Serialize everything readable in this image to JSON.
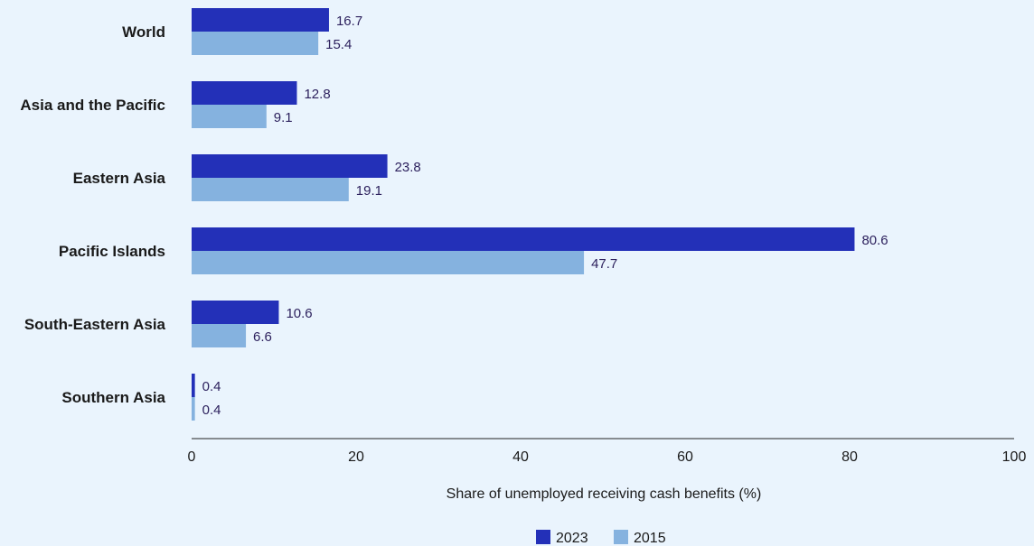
{
  "chart_data": {
    "type": "bar",
    "orientation": "horizontal",
    "categories": [
      "World",
      "Asia and the Pacific",
      "Eastern Asia",
      "Pacific Islands",
      "South-Eastern Asia",
      "Southern Asia"
    ],
    "series": [
      {
        "name": "2023",
        "color": "#2330b8",
        "values": [
          16.7,
          12.8,
          23.8,
          80.6,
          10.6,
          0.4
        ]
      },
      {
        "name": "2015",
        "color": "#85b2df",
        "values": [
          15.4,
          9.1,
          19.1,
          47.7,
          6.6,
          0.4
        ]
      }
    ],
    "xlabel": "Share of unemployed receiving cash benefits (%)",
    "xlim": [
      0,
      100
    ],
    "xticks": [
      "0",
      "20",
      "40",
      "60",
      "80",
      "100"
    ],
    "value_labels_shown": true,
    "legend_position": "bottom-center",
    "grid": false
  }
}
